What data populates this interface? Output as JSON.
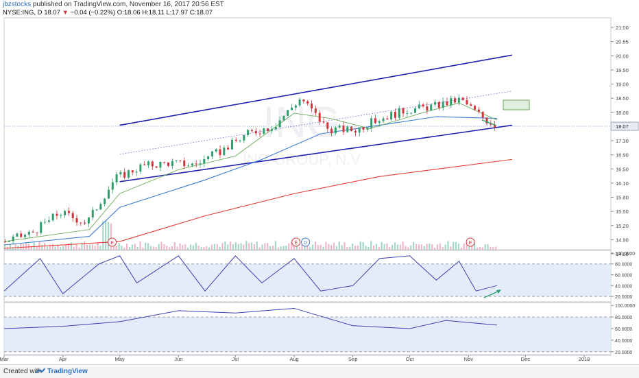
{
  "header": {
    "user": "jbzstocks",
    "published": "published on TradingView.com, November 16, 2017 20:56 EST",
    "symbol": "NYSE:ING, D",
    "last": "18.07",
    "change": "−0.04 (−0.22%)",
    "ohlc": "O:18.06 H:18.11 L:17.97 C:18.07"
  },
  "watermark": {
    "ticker": "ING",
    "name": "ING GROUP, N.V"
  },
  "price_label": "18.07",
  "footer": {
    "created_with": "Created with",
    "brand": "TradingView"
  },
  "colors": {
    "up": "#2e9e6b",
    "down": "#d0343a",
    "channel": "#1f1fb0",
    "sma_long": "#e53935",
    "sma_mid": "#3a7bd5",
    "sma_short": "#6aaa5a",
    "osc": "#3a3fb5",
    "osc_band": "#e4ecf9"
  },
  "earnings_markers": [
    {
      "label": "E",
      "date": "2017-04-27"
    },
    {
      "label": "E",
      "date": "2017-08-02"
    },
    {
      "label": "D",
      "date": "2017-08-07"
    },
    {
      "label": "E",
      "date": "2017-11-02"
    }
  ],
  "chart_data": [
    {
      "type": "candlestick",
      "yaxis_ticks": [
        "21.00",
        "20.55",
        "20.00",
        "19.50",
        "19.00",
        "18.50",
        "18.00",
        "17.70",
        "17.30",
        "16.90",
        "16.50",
        "16.10",
        "15.80",
        "15.50",
        "15.20",
        "14.90",
        "14.60"
      ],
      "x": [
        "2017-03-01",
        "2017-03-15",
        "2017-03-30",
        "2017-04-13",
        "2017-04-28",
        "2017-05-12",
        "2017-05-26",
        "2017-06-09",
        "2017-06-23",
        "2017-07-07",
        "2017-07-21",
        "2017-08-04",
        "2017-08-18",
        "2017-09-01",
        "2017-09-15",
        "2017-09-29",
        "2017-10-13",
        "2017-10-27",
        "2017-11-10",
        "2017-11-16"
      ],
      "close": [
        14.7,
        14.95,
        15.55,
        15.25,
        16.55,
        16.9,
        17.0,
        16.95,
        17.35,
        17.85,
        18.1,
        18.9,
        18.0,
        17.95,
        18.3,
        18.55,
        18.65,
        18.85,
        18.25,
        18.07
      ],
      "ylim": [
        14.5,
        21.2
      ],
      "series": [
        {
          "name": "channel_upper",
          "x": [
            "2017-05-01",
            "2017-11-24"
          ],
          "y": [
            18.1,
            20.15
          ]
        },
        {
          "name": "channel_lower",
          "x": [
            "2017-05-01",
            "2017-11-24"
          ],
          "y": [
            16.45,
            18.1
          ]
        },
        {
          "name": "trend_dotted",
          "x": [
            "2017-05-01",
            "2017-11-24"
          ],
          "y": [
            17.25,
            19.1
          ]
        },
        {
          "name": "sma_long",
          "x": [
            "2017-03-01",
            "2017-05-01",
            "2017-06-15",
            "2017-08-01",
            "2017-09-15",
            "2017-11-24"
          ],
          "y": [
            14.5,
            14.7,
            15.45,
            16.1,
            16.6,
            17.1
          ]
        },
        {
          "name": "sma_mid",
          "x": [
            "2017-03-01",
            "2017-04-15",
            "2017-05-01",
            "2017-06-15",
            "2017-07-15",
            "2017-08-15",
            "2017-09-15",
            "2017-10-15",
            "2017-11-16"
          ],
          "y": [
            14.6,
            14.85,
            15.7,
            16.5,
            17.1,
            17.85,
            18.1,
            18.35,
            18.3
          ]
        },
        {
          "name": "sma_short",
          "x": [
            "2017-03-01",
            "2017-04-15",
            "2017-05-01",
            "2017-06-01",
            "2017-07-01",
            "2017-08-01",
            "2017-08-20",
            "2017-09-10",
            "2017-10-10",
            "2017-10-27",
            "2017-11-16"
          ],
          "y": [
            14.7,
            15.05,
            16.1,
            16.8,
            17.2,
            18.45,
            18.3,
            18.0,
            18.5,
            18.75,
            18.25
          ]
        }
      ]
    },
    {
      "type": "line",
      "title": "",
      "x": [
        "2017-03-01",
        "2017-03-20",
        "2017-04-01",
        "2017-04-20",
        "2017-05-01",
        "2017-05-10",
        "2017-06-01",
        "2017-06-15",
        "2017-07-01",
        "2017-07-15",
        "2017-08-01",
        "2017-08-15",
        "2017-09-01",
        "2017-09-15",
        "2017-10-01",
        "2017-10-15",
        "2017-10-27",
        "2017-11-05",
        "2017-11-16"
      ],
      "y": [
        30,
        90,
        25,
        80,
        95,
        45,
        95,
        30,
        95,
        45,
        90,
        30,
        40,
        90,
        95,
        50,
        85,
        30,
        40
      ],
      "ylim": [
        10,
        105
      ],
      "yaxis_ticks": [
        "100.0000",
        "80.0000",
        "60.0000",
        "40.0000",
        "20.0000"
      ],
      "bands": [
        80,
        20
      ]
    },
    {
      "type": "line",
      "title": "",
      "x": [
        "2017-03-01",
        "2017-04-01",
        "2017-05-01",
        "2017-06-01",
        "2017-07-01",
        "2017-08-01",
        "2017-09-01",
        "2017-10-01",
        "2017-10-20",
        "2017-11-16"
      ],
      "y": [
        60,
        64,
        72,
        91,
        87,
        95,
        65,
        60,
        74,
        66
      ],
      "ylim": [
        15,
        105
      ],
      "yaxis_ticks": [
        "100.0000",
        "80.0000",
        "60.0000",
        "40.0000",
        "20.0000"
      ],
      "bands": [
        80,
        20
      ],
      "xaxis_labels": [
        "Mar",
        "Apr",
        "May",
        "Jun",
        "Jul",
        "Aug",
        "Sep",
        "Oct",
        "Nov",
        "Dec",
        "2018"
      ]
    }
  ]
}
